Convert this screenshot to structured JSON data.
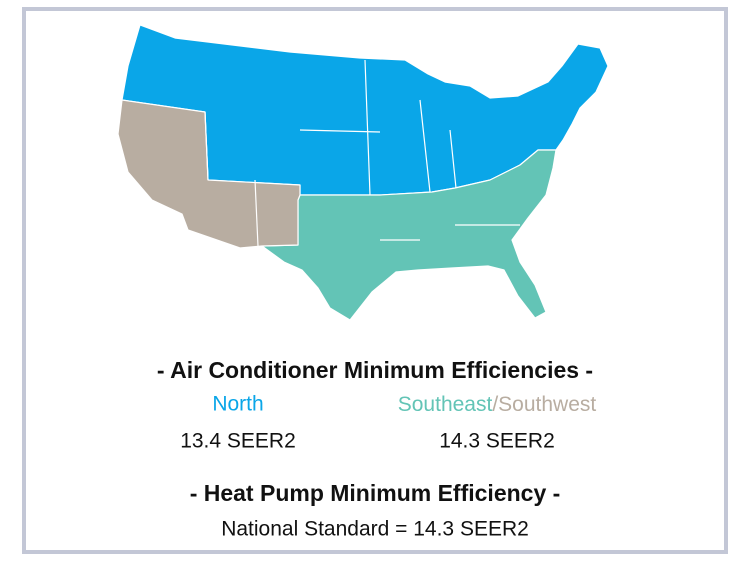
{
  "map": {
    "regions": [
      {
        "name": "North",
        "color": "#0aa6e8"
      },
      {
        "name": "Southeast",
        "color": "#63c4b6"
      },
      {
        "name": "Southwest",
        "color": "#b8ada1"
      }
    ]
  },
  "ac_title": "- Air Conditioner Minimum Efficiencies -",
  "north": {
    "value": "13.4 SEER2"
  },
  "south": {
    "separator": "/",
    "value": "14.3 SEER2"
  },
  "hp_title": "- Heat Pump Minimum Efficiency -",
  "hp_text": "National Standard = 14.3 SEER2"
}
